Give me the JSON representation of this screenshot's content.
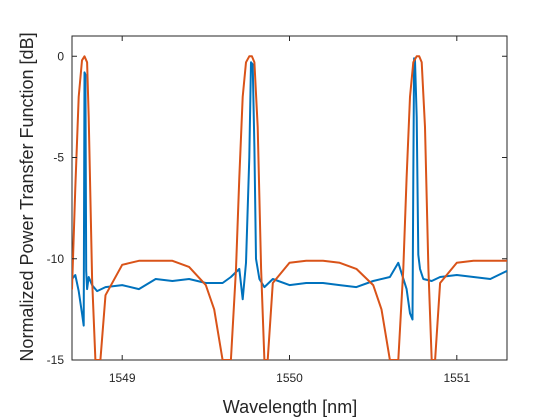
{
  "chart_data": {
    "type": "line",
    "xlabel": "Wavelength [nm]",
    "ylabel": "Normalized Power Transfer Function [dB]",
    "xlim": [
      1548.7,
      1551.3
    ],
    "ylim": [
      -15,
      1
    ],
    "x_ticks": [
      1549,
      1550,
      1551
    ],
    "x_tick_labels": [
      "1549",
      "1550",
      "1551"
    ],
    "y_ticks": [
      0,
      -5,
      -10,
      -15
    ],
    "y_tick_labels": [
      "0",
      "-5",
      "-10",
      "-15"
    ],
    "grid": false,
    "legend": "none",
    "series": [
      {
        "color": "#0072BD",
        "x": [
          1548.7,
          1548.72,
          1548.74,
          1548.76,
          1548.77,
          1548.775,
          1548.78,
          1548.785,
          1548.79,
          1548.8,
          1548.82,
          1548.85,
          1548.9,
          1549.0,
          1549.1,
          1549.2,
          1549.3,
          1549.4,
          1549.5,
          1549.6,
          1549.65,
          1549.7,
          1549.72,
          1549.74,
          1549.76,
          1549.77,
          1549.78,
          1549.79,
          1549.8,
          1549.82,
          1549.85,
          1549.9,
          1550.0,
          1550.1,
          1550.2,
          1550.3,
          1550.4,
          1550.5,
          1550.6,
          1550.65,
          1550.7,
          1550.72,
          1550.735,
          1550.74,
          1550.745,
          1550.75,
          1550.76,
          1550.77,
          1550.78,
          1550.8,
          1550.85,
          1550.9,
          1551.0,
          1551.1,
          1551.2,
          1551.3
        ],
        "y": [
          -11.0,
          -10.8,
          -11.6,
          -12.7,
          -13.3,
          -0.8,
          -0.9,
          -10.6,
          -11.5,
          -10.9,
          -11.3,
          -11.6,
          -11.4,
          -11.3,
          -11.5,
          -11.0,
          -11.1,
          -11.0,
          -11.2,
          -11.2,
          -10.9,
          -10.5,
          -12.0,
          -10.2,
          -5.0,
          -0.3,
          -0.4,
          -4.5,
          -10.0,
          -11.0,
          -11.4,
          -11.0,
          -11.3,
          -11.2,
          -11.2,
          -11.3,
          -11.4,
          -11.1,
          -10.9,
          -10.2,
          -11.5,
          -12.7,
          -13.0,
          -6.0,
          -0.1,
          -0.2,
          -3.0,
          -9.8,
          -10.5,
          -11.0,
          -11.1,
          -10.9,
          -10.8,
          -10.9,
          -11.0,
          -10.6
        ]
      },
      {
        "color": "#D95319",
        "x": [
          1548.7,
          1548.72,
          1548.74,
          1548.76,
          1548.775,
          1548.79,
          1548.8,
          1548.82,
          1548.84,
          1548.87,
          1548.9,
          1549.0,
          1549.1,
          1549.2,
          1549.3,
          1549.4,
          1549.5,
          1549.55,
          1549.6,
          1549.65,
          1549.68,
          1549.7,
          1549.72,
          1549.74,
          1549.76,
          1549.775,
          1549.79,
          1549.81,
          1549.83,
          1549.85,
          1549.87,
          1549.9,
          1550.0,
          1550.1,
          1550.2,
          1550.3,
          1550.4,
          1550.5,
          1550.55,
          1550.6,
          1550.65,
          1550.68,
          1550.7,
          1550.72,
          1550.74,
          1550.76,
          1550.775,
          1550.79,
          1550.81,
          1550.83,
          1550.85,
          1550.87,
          1550.9,
          1551.0,
          1551.1,
          1551.2,
          1551.3
        ],
        "y": [
          -11.5,
          -6.5,
          -2.0,
          -0.2,
          0.0,
          -0.3,
          -3.0,
          -11.0,
          -15.0,
          -15.0,
          -11.8,
          -10.3,
          -10.1,
          -10.1,
          -10.1,
          -10.4,
          -11.3,
          -12.5,
          -15.0,
          -15.0,
          -10.5,
          -6.0,
          -2.0,
          -0.3,
          0.0,
          0.0,
          -0.3,
          -3.5,
          -10.5,
          -15.0,
          -15.0,
          -11.2,
          -10.2,
          -10.1,
          -10.1,
          -10.2,
          -10.5,
          -11.3,
          -12.5,
          -15.0,
          -15.0,
          -10.5,
          -6.0,
          -2.0,
          -0.3,
          0.0,
          0.0,
          -0.3,
          -3.5,
          -10.5,
          -15.0,
          -15.0,
          -11.2,
          -10.2,
          -10.1,
          -10.1,
          -10.1
        ]
      }
    ]
  }
}
